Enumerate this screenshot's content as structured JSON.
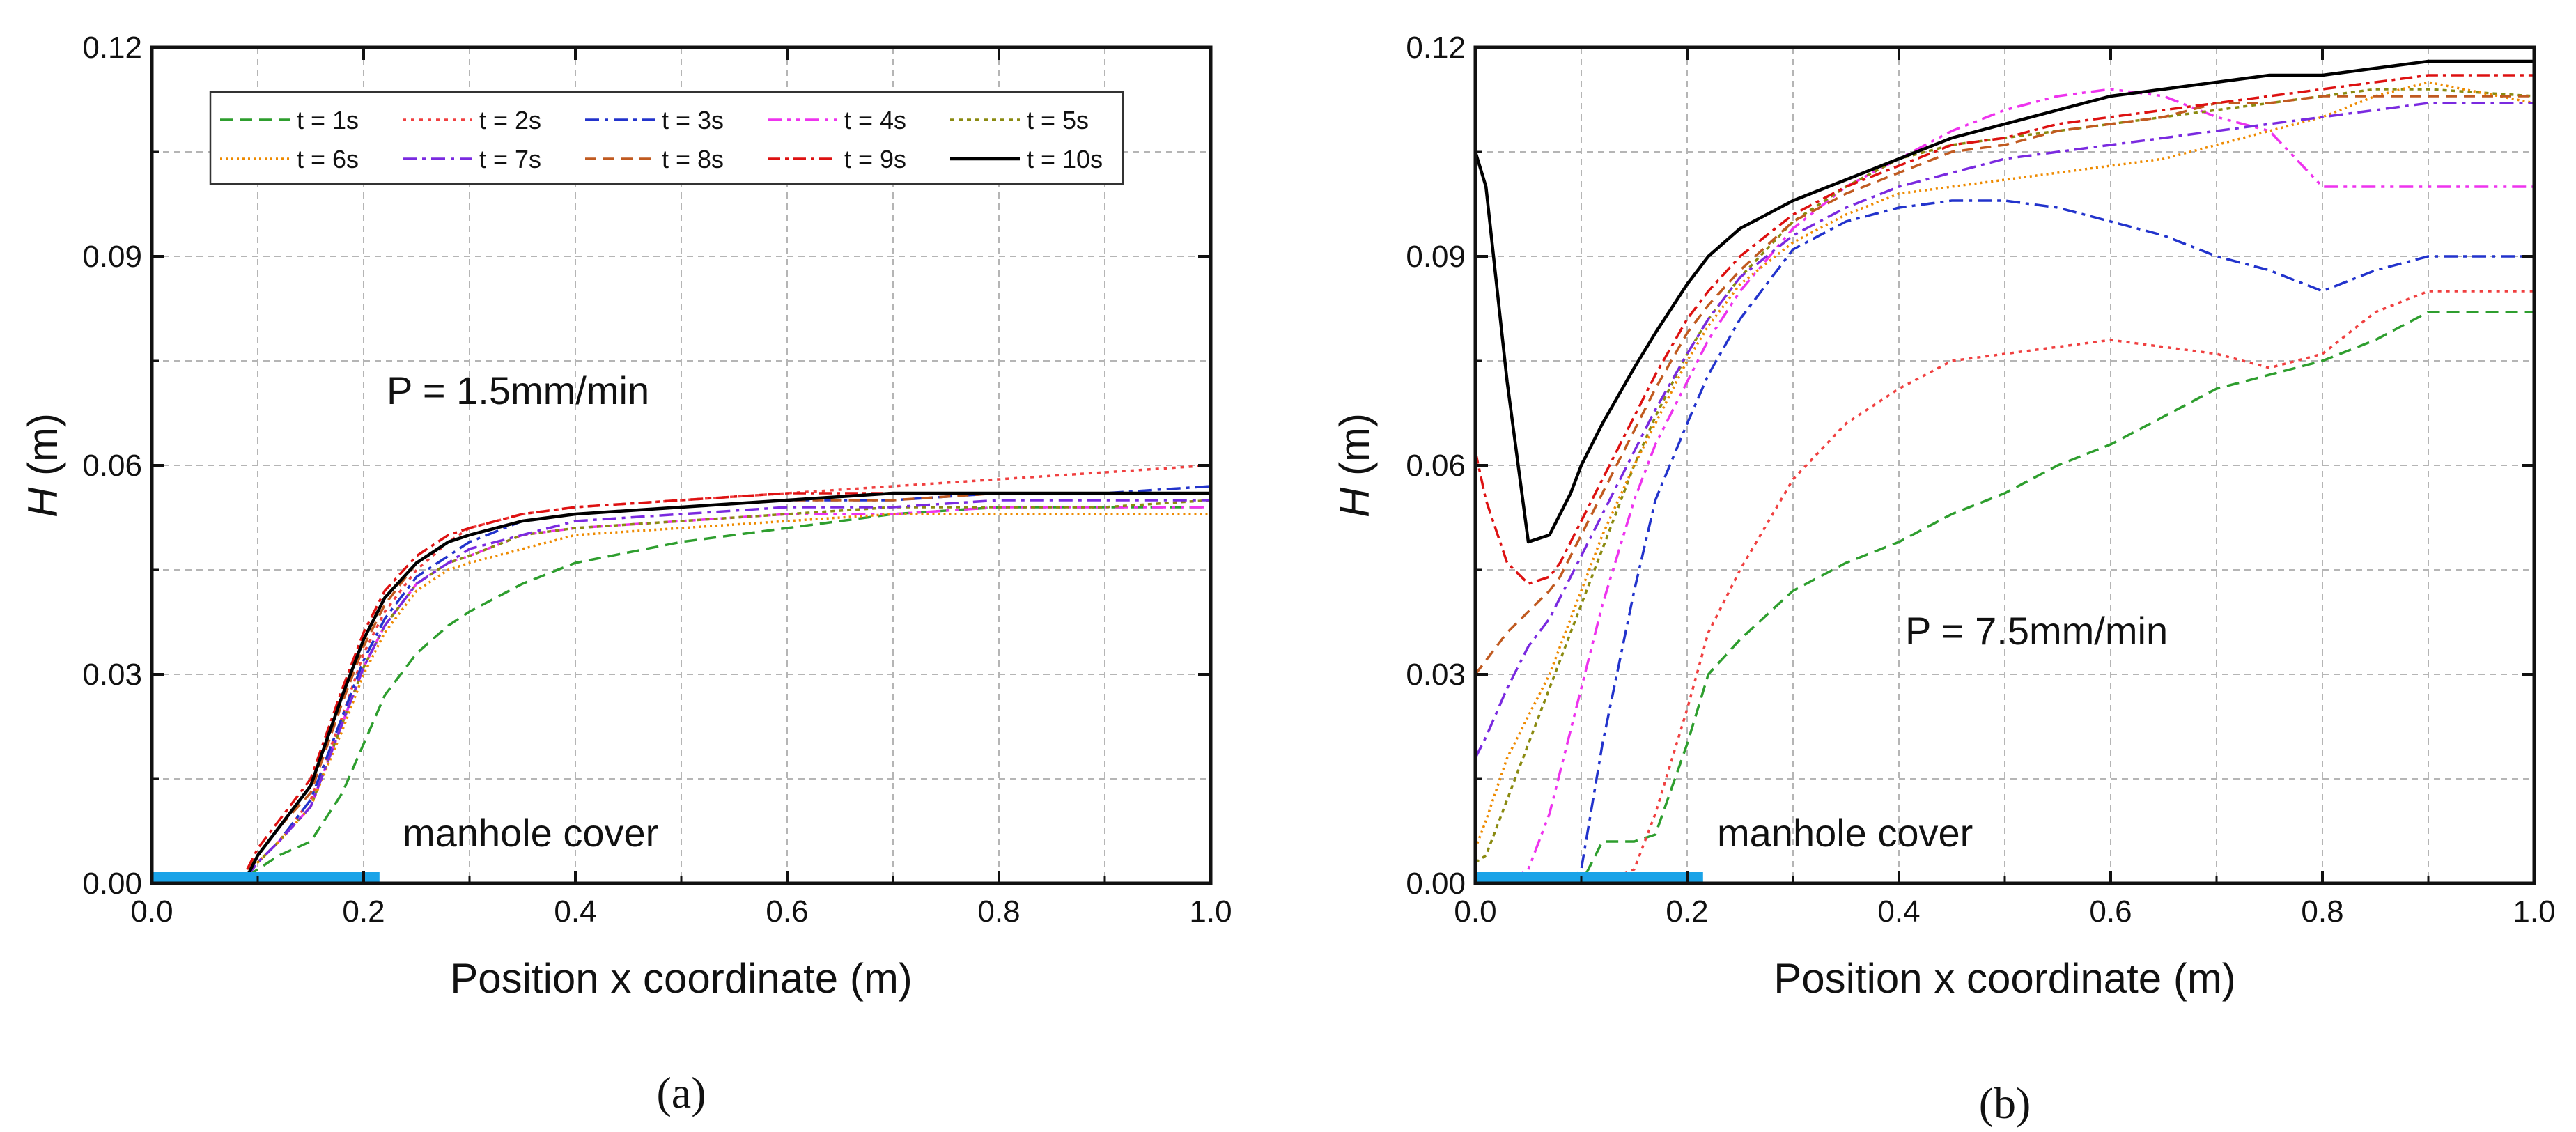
{
  "chart_data": [
    {
      "type": "line",
      "panel_label": "(a)",
      "xlabel": "Position x coordinate (m)",
      "ylabel": "H (m)",
      "xlim": [
        0,
        1.0
      ],
      "ylim": [
        0,
        0.12
      ],
      "xticks": [
        "0.0",
        "0.2",
        "0.4",
        "0.6",
        "0.8",
        "1.0"
      ],
      "yticks": [
        "0.00",
        "0.03",
        "0.06",
        "0.09",
        "0.12"
      ],
      "grid": true,
      "legend": "top-left",
      "annotations": [
        "P = 1.5mm/min",
        "manhole cover"
      ],
      "cover_range": [
        0.0,
        0.215
      ],
      "x": [
        0.09,
        0.1,
        0.12,
        0.15,
        0.18,
        0.2,
        0.22,
        0.25,
        0.28,
        0.3,
        0.35,
        0.4,
        0.5,
        0.6,
        0.7,
        0.8,
        0.9,
        1.0
      ],
      "series": [
        {
          "name": "t = 1s",
          "color": "#2e9e2e",
          "dash": "18 10",
          "values": [
            0.001,
            0.002,
            0.004,
            0.006,
            0.013,
            0.02,
            0.027,
            0.033,
            0.037,
            0.039,
            0.043,
            0.046,
            0.049,
            0.051,
            0.053,
            0.054,
            0.054,
            0.054
          ]
        },
        {
          "name": "t = 2s",
          "color": "#f04040",
          "dash": "5 7",
          "values": [
            0.001,
            0.003,
            0.006,
            0.012,
            0.024,
            0.033,
            0.039,
            0.045,
            0.049,
            0.051,
            0.053,
            0.054,
            0.055,
            0.056,
            0.057,
            0.058,
            0.059,
            0.06
          ]
        },
        {
          "name": "t = 3s",
          "color": "#2233cc",
          "dash": "20 8 5 8",
          "values": [
            0.001,
            0.003,
            0.006,
            0.012,
            0.024,
            0.032,
            0.038,
            0.044,
            0.047,
            0.049,
            0.052,
            0.053,
            0.054,
            0.055,
            0.055,
            0.056,
            0.056,
            0.057
          ]
        },
        {
          "name": "t = 4s",
          "color": "#ee33ee",
          "dash": "20 8 5 8 5 8",
          "values": [
            0.001,
            0.003,
            0.006,
            0.011,
            0.023,
            0.031,
            0.037,
            0.043,
            0.046,
            0.047,
            0.05,
            0.051,
            0.052,
            0.053,
            0.053,
            0.054,
            0.054,
            0.054
          ]
        },
        {
          "name": "t = 5s",
          "color": "#8a8a10",
          "dash": "6 6",
          "values": [
            0.001,
            0.003,
            0.006,
            0.011,
            0.023,
            0.031,
            0.037,
            0.043,
            0.046,
            0.047,
            0.05,
            0.051,
            0.052,
            0.053,
            0.054,
            0.054,
            0.054,
            0.055
          ]
        },
        {
          "name": "t = 6s",
          "color": "#ee8a00",
          "dash": "3 5",
          "values": [
            0.001,
            0.003,
            0.006,
            0.011,
            0.022,
            0.03,
            0.036,
            0.042,
            0.045,
            0.046,
            0.048,
            0.05,
            0.051,
            0.052,
            0.053,
            0.053,
            0.053,
            0.053
          ]
        },
        {
          "name": "t = 7s",
          "color": "#7a2ae0",
          "dash": "20 8 5 8",
          "values": [
            0.001,
            0.003,
            0.006,
            0.011,
            0.023,
            0.031,
            0.037,
            0.043,
            0.046,
            0.048,
            0.05,
            0.052,
            0.053,
            0.054,
            0.054,
            0.055,
            0.055,
            0.055
          ]
        },
        {
          "name": "t = 8s",
          "color": "#c05a20",
          "dash": "16 10",
          "values": [
            0.002,
            0.004,
            0.008,
            0.013,
            0.026,
            0.034,
            0.04,
            0.046,
            0.049,
            0.05,
            0.052,
            0.053,
            0.054,
            0.055,
            0.055,
            0.056,
            0.056,
            0.056
          ]
        },
        {
          "name": "t = 9s",
          "color": "#dd1111",
          "dash": "18 7 5 7",
          "values": [
            0.002,
            0.005,
            0.009,
            0.015,
            0.028,
            0.036,
            0.042,
            0.047,
            0.05,
            0.051,
            0.053,
            0.054,
            0.055,
            0.056,
            0.056,
            0.056,
            0.056,
            0.056
          ]
        },
        {
          "name": "t = 10s",
          "color": "#000000",
          "dash": "",
          "values": [
            0.001,
            0.004,
            0.008,
            0.014,
            0.027,
            0.035,
            0.041,
            0.046,
            0.049,
            0.05,
            0.052,
            0.053,
            0.054,
            0.055,
            0.056,
            0.056,
            0.056,
            0.056
          ]
        }
      ]
    },
    {
      "type": "line",
      "panel_label": "(b)",
      "xlabel": "Position x coordinate (m)",
      "ylabel": "H (m)",
      "xlim": [
        0,
        1.0
      ],
      "ylim": [
        0,
        0.12
      ],
      "xticks": [
        "0.0",
        "0.2",
        "0.4",
        "0.6",
        "0.8",
        "1.0"
      ],
      "yticks": [
        "0.00",
        "0.03",
        "0.06",
        "0.09",
        "0.12"
      ],
      "grid": true,
      "annotations": [
        "P = 7.5mm/min",
        "manhole cover"
      ],
      "cover_range": [
        0.0,
        0.215
      ],
      "x": [
        0,
        0.01,
        0.03,
        0.05,
        0.07,
        0.08,
        0.09,
        0.1,
        0.12,
        0.15,
        0.17,
        0.2,
        0.22,
        0.25,
        0.3,
        0.35,
        0.4,
        0.45,
        0.5,
        0.55,
        0.6,
        0.65,
        0.7,
        0.75,
        0.8,
        0.85,
        0.9,
        1.0
      ],
      "series": [
        {
          "name": "t = 1s",
          "color": "#2e9e2e",
          "dash": "18 10",
          "values": [
            0,
            0,
            0,
            0,
            0,
            0,
            0,
            0,
            0.006,
            0.006,
            0.007,
            0.02,
            0.03,
            0.035,
            0.042,
            0.046,
            0.049,
            0.053,
            0.056,
            0.06,
            0.063,
            0.067,
            0.071,
            0.073,
            0.075,
            0.078,
            0.082,
            0.082
          ]
        },
        {
          "name": "t = 2s",
          "color": "#f04040",
          "dash": "5 7",
          "values": [
            0,
            0,
            0,
            0,
            0,
            0,
            0,
            0,
            0,
            0.002,
            0.01,
            0.025,
            0.036,
            0.045,
            0.058,
            0.066,
            0.071,
            0.075,
            0.076,
            0.077,
            0.078,
            0.077,
            0.076,
            0.074,
            0.076,
            0.082,
            0.085,
            0.085
          ]
        },
        {
          "name": "t = 3s",
          "color": "#2233cc",
          "dash": "20 8 5 8",
          "values": [
            0,
            0,
            0,
            0,
            0,
            0,
            0,
            0.002,
            0.02,
            0.042,
            0.055,
            0.066,
            0.073,
            0.081,
            0.091,
            0.095,
            0.097,
            0.098,
            0.098,
            0.097,
            0.095,
            0.093,
            0.09,
            0.088,
            0.085,
            0.088,
            0.09,
            0.09
          ]
        },
        {
          "name": "t = 4s",
          "color": "#ee33ee",
          "dash": "20 8 5 8 5 8",
          "values": [
            0,
            0,
            0,
            0.002,
            0.01,
            0.016,
            0.022,
            0.028,
            0.04,
            0.055,
            0.063,
            0.072,
            0.078,
            0.085,
            0.094,
            0.1,
            0.104,
            0.108,
            0.111,
            0.113,
            0.114,
            0.113,
            0.11,
            0.108,
            0.1,
            0.1,
            0.1,
            0.1
          ]
        },
        {
          "name": "t = 5s",
          "color": "#8a8a10",
          "dash": "6 6",
          "values": [
            0.003,
            0.004,
            0.012,
            0.02,
            0.028,
            0.032,
            0.036,
            0.04,
            0.048,
            0.06,
            0.067,
            0.076,
            0.081,
            0.087,
            0.095,
            0.1,
            0.104,
            0.106,
            0.107,
            0.108,
            0.109,
            0.11,
            0.111,
            0.112,
            0.113,
            0.114,
            0.114,
            0.113
          ]
        },
        {
          "name": "t = 6s",
          "color": "#ee8a00",
          "dash": "3 5",
          "values": [
            0.005,
            0.009,
            0.018,
            0.024,
            0.03,
            0.034,
            0.038,
            0.042,
            0.05,
            0.06,
            0.066,
            0.075,
            0.08,
            0.086,
            0.092,
            0.096,
            0.099,
            0.1,
            0.101,
            0.102,
            0.103,
            0.104,
            0.106,
            0.108,
            0.11,
            0.113,
            0.115,
            0.112
          ]
        },
        {
          "name": "t = 7s",
          "color": "#7a2ae0",
          "dash": "20 8 5 8",
          "values": [
            0.018,
            0.021,
            0.028,
            0.034,
            0.038,
            0.041,
            0.044,
            0.047,
            0.053,
            0.062,
            0.068,
            0.076,
            0.081,
            0.087,
            0.093,
            0.097,
            0.1,
            0.102,
            0.104,
            0.105,
            0.106,
            0.107,
            0.108,
            0.109,
            0.11,
            0.111,
            0.112,
            0.112
          ]
        },
        {
          "name": "t = 8s",
          "color": "#c05a20",
          "dash": "16 10",
          "values": [
            0.03,
            0.032,
            0.036,
            0.039,
            0.042,
            0.044,
            0.047,
            0.05,
            0.056,
            0.065,
            0.071,
            0.079,
            0.083,
            0.088,
            0.095,
            0.099,
            0.102,
            0.105,
            0.106,
            0.108,
            0.109,
            0.11,
            0.112,
            0.112,
            0.113,
            0.113,
            0.113,
            0.113
          ]
        },
        {
          "name": "t = 9s",
          "color": "#dd1111",
          "dash": "18 7 5 7",
          "values": [
            0.062,
            0.055,
            0.046,
            0.043,
            0.044,
            0.046,
            0.049,
            0.052,
            0.058,
            0.067,
            0.073,
            0.081,
            0.085,
            0.09,
            0.096,
            0.1,
            0.103,
            0.106,
            0.107,
            0.109,
            0.11,
            0.111,
            0.112,
            0.113,
            0.114,
            0.115,
            0.116,
            0.116
          ]
        },
        {
          "name": "t = 10s",
          "color": "#000000",
          "dash": "",
          "values": [
            0.105,
            0.1,
            0.072,
            0.049,
            0.05,
            0.053,
            0.056,
            0.06,
            0.066,
            0.074,
            0.079,
            0.086,
            0.09,
            0.094,
            0.098,
            0.101,
            0.104,
            0.107,
            0.109,
            0.111,
            0.113,
            0.114,
            0.115,
            0.116,
            0.116,
            0.117,
            0.118,
            0.118
          ]
        }
      ]
    }
  ]
}
